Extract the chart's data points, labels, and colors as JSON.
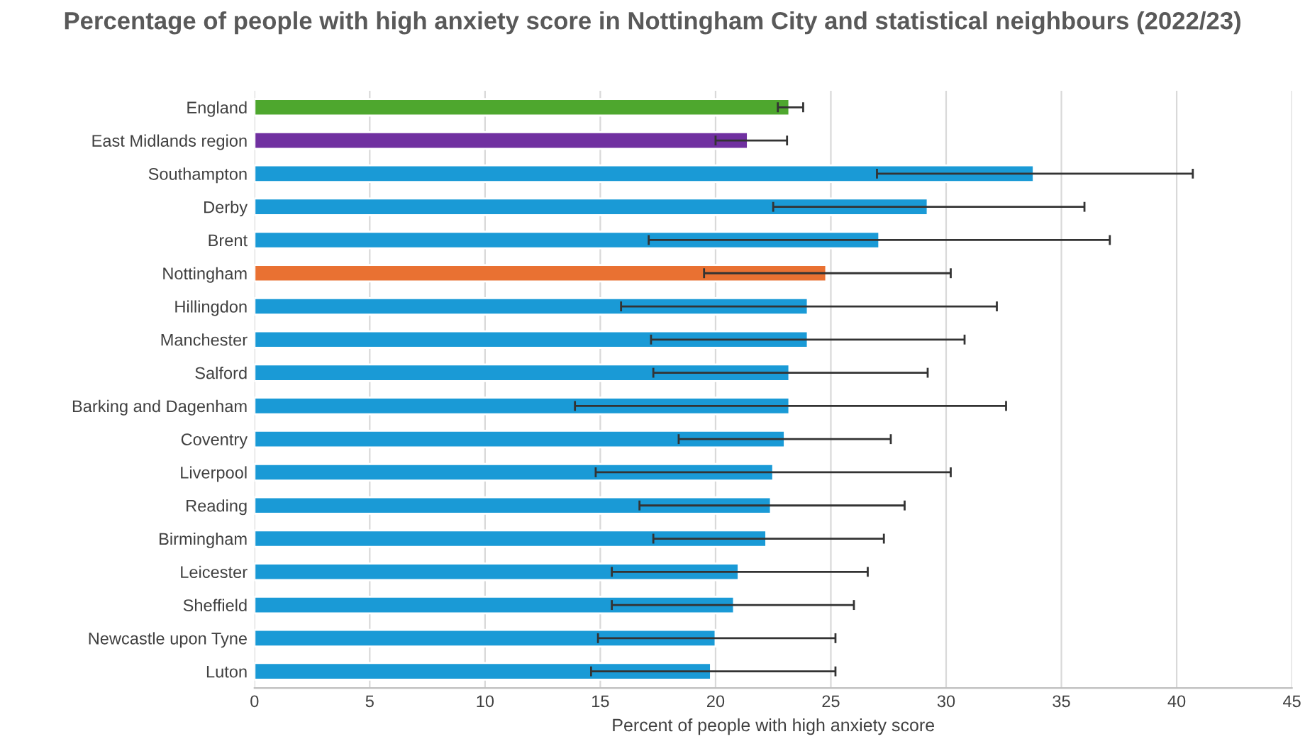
{
  "chart_data": {
    "type": "bar",
    "orientation": "horizontal",
    "title": "Percentage of people with high anxiety score in Nottingham City and statistical neighbours (2022/23)",
    "xlabel": "Percent of people with high anxiety score",
    "categories": [
      "England",
      "East Midlands region",
      "Southampton",
      "Derby",
      "Brent",
      "Nottingham",
      "Hillingdon",
      "Manchester",
      "Salford",
      "Barking and Dagenham",
      "Coventry",
      "Liverpool",
      "Reading",
      "Birmingham",
      "Leicester",
      "Sheffield",
      "Newcastle upon Tyne",
      "Luton"
    ],
    "values": [
      23.2,
      21.4,
      33.8,
      29.2,
      27.1,
      24.8,
      24.0,
      24.0,
      23.2,
      23.2,
      23.0,
      22.5,
      22.4,
      22.2,
      21.0,
      20.8,
      20.0,
      19.8
    ],
    "errors": [
      [
        22.7,
        23.8
      ],
      [
        20.0,
        23.1
      ],
      [
        27.0,
        40.7
      ],
      [
        22.5,
        36.0
      ],
      [
        17.1,
        37.1
      ],
      [
        19.5,
        30.2
      ],
      [
        15.9,
        32.2
      ],
      [
        17.2,
        30.8
      ],
      [
        17.3,
        29.2
      ],
      [
        13.9,
        32.6
      ],
      [
        18.4,
        27.6
      ],
      [
        14.8,
        30.2
      ],
      [
        16.7,
        28.2
      ],
      [
        17.3,
        27.3
      ],
      [
        15.5,
        26.6
      ],
      [
        15.5,
        26.0
      ],
      [
        14.9,
        25.2
      ],
      [
        14.6,
        25.2
      ]
    ],
    "colors": [
      "#4ea72e",
      "#7030a0",
      "#1a9ad6",
      "#1a9ad6",
      "#1a9ad6",
      "#e97132",
      "#1a9ad6",
      "#1a9ad6",
      "#1a9ad6",
      "#1a9ad6",
      "#1a9ad6",
      "#1a9ad6",
      "#1a9ad6",
      "#1a9ad6",
      "#1a9ad6",
      "#1a9ad6",
      "#1a9ad6",
      "#1a9ad6"
    ],
    "xlim": [
      0,
      45
    ],
    "xticks": [
      0,
      5,
      10,
      15,
      20,
      25,
      30,
      35,
      40,
      45
    ],
    "grid": "x",
    "legend": false
  }
}
